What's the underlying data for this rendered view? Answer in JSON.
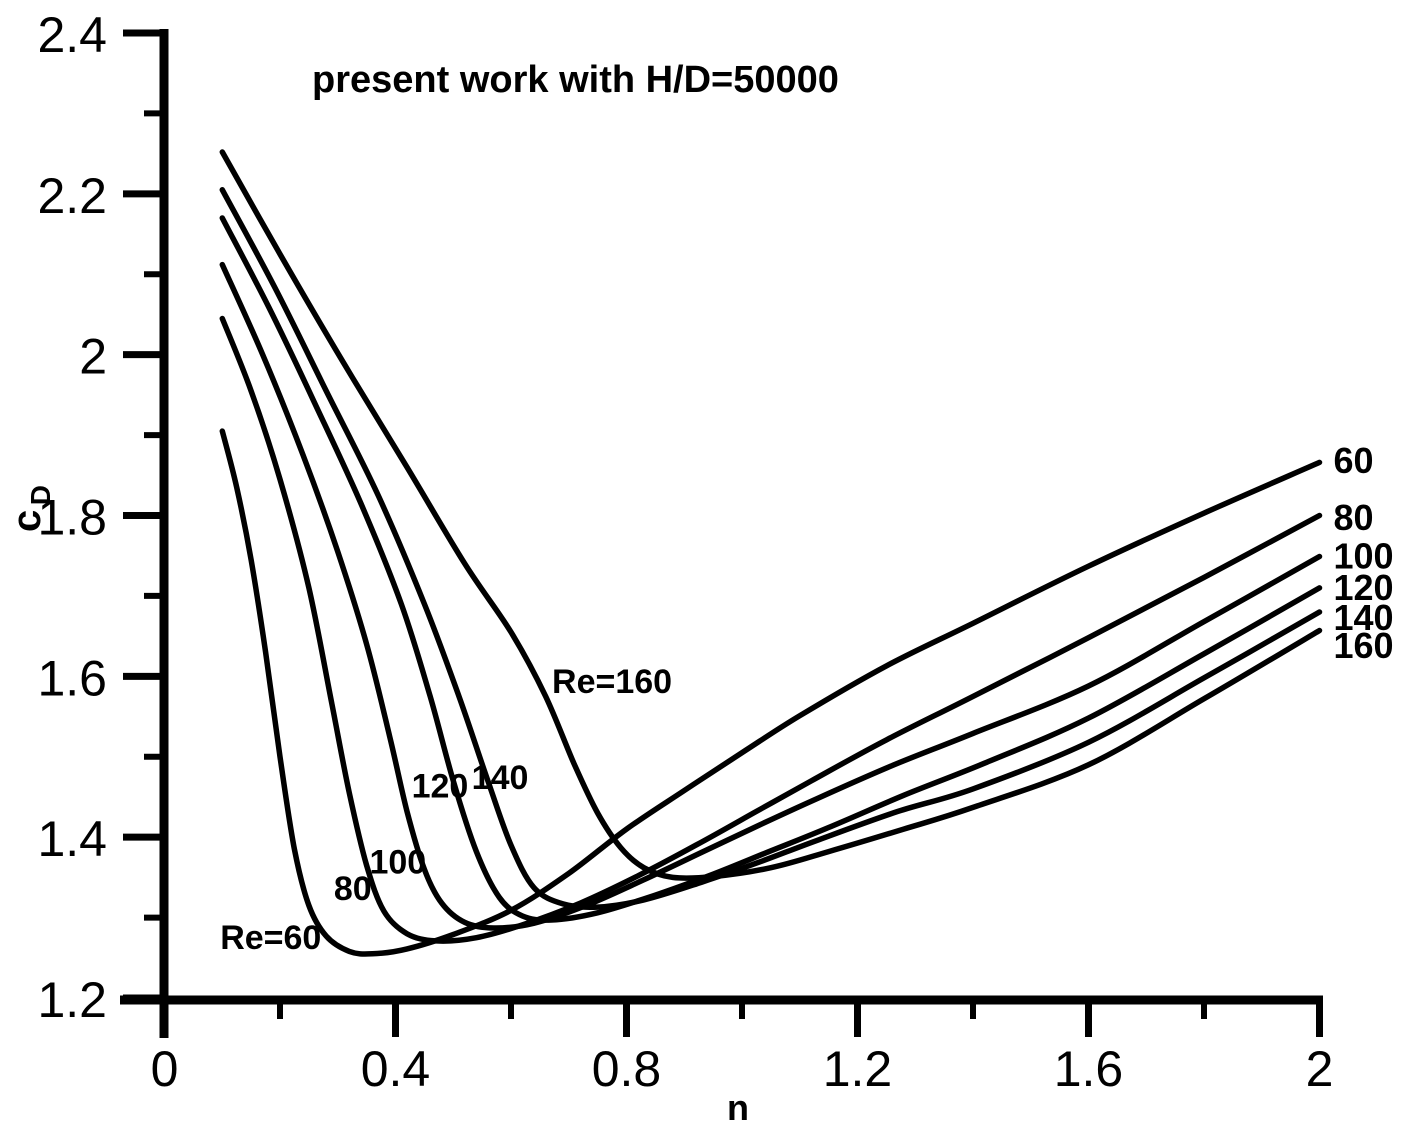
{
  "title": "present work with H/D=50000",
  "chart_data": {
    "type": "line",
    "title": "present work with H/D=50000",
    "xlabel": "n",
    "ylabel_main": "c",
    "ylabel_sub": "D",
    "xlim": [
      0,
      2
    ],
    "ylim": [
      1.2,
      2.4
    ],
    "grid": false,
    "x_major_ticks": [
      {
        "value": 0.0,
        "label": "0"
      },
      {
        "value": 0.4,
        "label": "0.4"
      },
      {
        "value": 0.8,
        "label": "0.8"
      },
      {
        "value": 1.2,
        "label": "1.2"
      },
      {
        "value": 1.6,
        "label": "1.6"
      },
      {
        "value": 2.0,
        "label": "2"
      }
    ],
    "x_minor_ticks": [
      0.2,
      0.6,
      1.0,
      1.4,
      1.8
    ],
    "y_major_ticks": [
      {
        "value": 2.4,
        "label": "2.4"
      },
      {
        "value": 2.2,
        "label": "2.2"
      },
      {
        "value": 2.0,
        "label": "2"
      },
      {
        "value": 1.8,
        "label": "1.8"
      },
      {
        "value": 1.6,
        "label": "1.6"
      },
      {
        "value": 1.4,
        "label": "1.4"
      },
      {
        "value": 1.2,
        "label": "1.2"
      }
    ],
    "y_minor_ticks": [
      2.3,
      2.1,
      1.9,
      1.7,
      1.5,
      1.3
    ],
    "line_color": "#000000",
    "series": [
      {
        "name": "Re=60",
        "points": [
          [
            0.1,
            1.905
          ],
          [
            0.125,
            1.835
          ],
          [
            0.15,
            1.745
          ],
          [
            0.175,
            1.63
          ],
          [
            0.2,
            1.5
          ],
          [
            0.225,
            1.385
          ],
          [
            0.25,
            1.315
          ],
          [
            0.28,
            1.277
          ],
          [
            0.32,
            1.258
          ],
          [
            0.36,
            1.255
          ],
          [
            0.42,
            1.261
          ],
          [
            0.5,
            1.279
          ],
          [
            0.6,
            1.309
          ],
          [
            0.7,
            1.355
          ],
          [
            0.8,
            1.41
          ],
          [
            0.9,
            1.458
          ],
          [
            1.0,
            1.505
          ],
          [
            1.1,
            1.551
          ],
          [
            1.25,
            1.613
          ],
          [
            1.4,
            1.666
          ],
          [
            1.6,
            1.737
          ],
          [
            1.8,
            1.803
          ],
          [
            2.0,
            1.866
          ]
        ]
      },
      {
        "name": "Re=80",
        "points": [
          [
            0.1,
            2.045
          ],
          [
            0.15,
            1.955
          ],
          [
            0.2,
            1.845
          ],
          [
            0.25,
            1.71
          ],
          [
            0.29,
            1.565
          ],
          [
            0.32,
            1.455
          ],
          [
            0.35,
            1.365
          ],
          [
            0.38,
            1.308
          ],
          [
            0.42,
            1.28
          ],
          [
            0.47,
            1.271
          ],
          [
            0.54,
            1.275
          ],
          [
            0.62,
            1.291
          ],
          [
            0.72,
            1.318
          ],
          [
            0.82,
            1.352
          ],
          [
            0.92,
            1.39
          ],
          [
            1.02,
            1.43
          ],
          [
            1.12,
            1.47
          ],
          [
            1.25,
            1.521
          ],
          [
            1.4,
            1.575
          ],
          [
            1.6,
            1.648
          ],
          [
            1.8,
            1.723
          ],
          [
            2.0,
            1.8
          ]
        ]
      },
      {
        "name": "Re=100",
        "points": [
          [
            0.1,
            2.112
          ],
          [
            0.17,
            2.0
          ],
          [
            0.24,
            1.875
          ],
          [
            0.3,
            1.755
          ],
          [
            0.35,
            1.64
          ],
          [
            0.39,
            1.525
          ],
          [
            0.42,
            1.432
          ],
          [
            0.45,
            1.36
          ],
          [
            0.48,
            1.318
          ],
          [
            0.52,
            1.294
          ],
          [
            0.57,
            1.287
          ],
          [
            0.64,
            1.293
          ],
          [
            0.73,
            1.315
          ],
          [
            0.83,
            1.347
          ],
          [
            0.93,
            1.381
          ],
          [
            1.03,
            1.415
          ],
          [
            1.13,
            1.448
          ],
          [
            1.26,
            1.489
          ],
          [
            1.4,
            1.529
          ],
          [
            1.6,
            1.588
          ],
          [
            1.8,
            1.668
          ],
          [
            2.0,
            1.749
          ]
        ]
      },
      {
        "name": "Re=120",
        "points": [
          [
            0.1,
            2.17
          ],
          [
            0.18,
            2.06
          ],
          [
            0.26,
            1.94
          ],
          [
            0.34,
            1.815
          ],
          [
            0.41,
            1.69
          ],
          [
            0.46,
            1.575
          ],
          [
            0.5,
            1.47
          ],
          [
            0.54,
            1.382
          ],
          [
            0.58,
            1.325
          ],
          [
            0.62,
            1.302
          ],
          [
            0.67,
            1.297
          ],
          [
            0.75,
            1.306
          ],
          [
            0.85,
            1.328
          ],
          [
            0.95,
            1.354
          ],
          [
            1.05,
            1.383
          ],
          [
            1.15,
            1.412
          ],
          [
            1.28,
            1.452
          ],
          [
            1.42,
            1.492
          ],
          [
            1.6,
            1.548
          ],
          [
            1.8,
            1.628
          ],
          [
            2.0,
            1.71
          ]
        ]
      },
      {
        "name": "Re=140",
        "points": [
          [
            0.1,
            2.205
          ],
          [
            0.19,
            2.085
          ],
          [
            0.28,
            1.955
          ],
          [
            0.37,
            1.825
          ],
          [
            0.45,
            1.69
          ],
          [
            0.51,
            1.575
          ],
          [
            0.56,
            1.47
          ],
          [
            0.6,
            1.39
          ],
          [
            0.64,
            1.337
          ],
          [
            0.69,
            1.317
          ],
          [
            0.75,
            1.313
          ],
          [
            0.83,
            1.322
          ],
          [
            0.93,
            1.344
          ],
          [
            1.03,
            1.369
          ],
          [
            1.13,
            1.396
          ],
          [
            1.27,
            1.432
          ],
          [
            1.4,
            1.46
          ],
          [
            1.6,
            1.518
          ],
          [
            1.8,
            1.598
          ],
          [
            2.0,
            1.68
          ]
        ]
      },
      {
        "name": "Re=160",
        "points": [
          [
            0.1,
            2.252
          ],
          [
            0.2,
            2.125
          ],
          [
            0.31,
            1.99
          ],
          [
            0.42,
            1.86
          ],
          [
            0.52,
            1.74
          ],
          [
            0.6,
            1.655
          ],
          [
            0.66,
            1.575
          ],
          [
            0.71,
            1.49
          ],
          [
            0.75,
            1.43
          ],
          [
            0.79,
            1.387
          ],
          [
            0.83,
            1.362
          ],
          [
            0.88,
            1.35
          ],
          [
            0.95,
            1.351
          ],
          [
            1.05,
            1.362
          ],
          [
            1.15,
            1.382
          ],
          [
            1.28,
            1.41
          ],
          [
            1.4,
            1.437
          ],
          [
            1.6,
            1.49
          ],
          [
            1.8,
            1.572
          ],
          [
            2.0,
            1.657
          ]
        ]
      }
    ],
    "curve_labels": [
      {
        "text": "Re=60",
        "n": 0.184,
        "cd": 1.276
      },
      {
        "text": "80",
        "n": 0.326,
        "cd": 1.337
      },
      {
        "text": "100",
        "n": 0.404,
        "cd": 1.37
      },
      {
        "text": "120",
        "n": 0.477,
        "cd": 1.464
      },
      {
        "text": "140",
        "n": 0.581,
        "cd": 1.475
      },
      {
        "text": "Re=160",
        "n": 0.775,
        "cd": 1.594
      }
    ],
    "right_labels": [
      {
        "text": "60",
        "cd": 1.869
      },
      {
        "text": "80",
        "cd": 1.798
      },
      {
        "text": "100",
        "cd": 1.75
      },
      {
        "text": "120",
        "cd": 1.711
      },
      {
        "text": "140",
        "cd": 1.674
      },
      {
        "text": "160",
        "cd": 1.639
      }
    ]
  }
}
